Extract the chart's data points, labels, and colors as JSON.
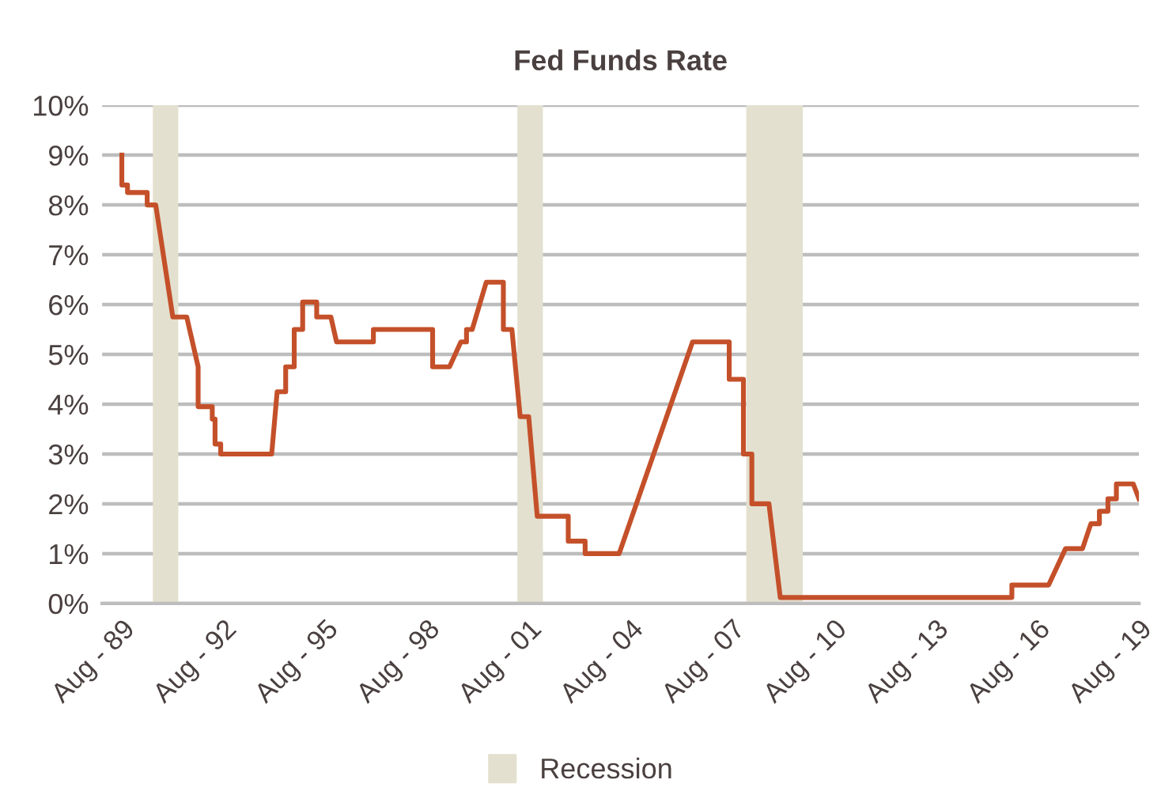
{
  "chart_data": {
    "type": "line",
    "title": "Fed Funds Rate",
    "x": [
      "1989-08",
      "1989-08",
      "1989-10",
      "1989-10",
      "1990-05",
      "1990-05",
      "1990-08",
      "1991-02",
      "1991-07",
      "1991-11",
      "1991-11",
      "1992-04",
      "1992-04",
      "1992-05",
      "1992-05",
      "1992-07",
      "1992-07",
      "1994-01",
      "1994-03",
      "1994-06",
      "1994-06",
      "1994-09",
      "1994-09",
      "1994-12",
      "1994-12",
      "1995-05",
      "1995-05",
      "1995-10",
      "1995-12",
      "1997-01",
      "1997-01",
      "1998-10",
      "1998-10",
      "1999-04",
      "1999-08",
      "1999-10",
      "1999-10",
      "1999-12",
      "2000-05",
      "2000-11",
      "2000-11",
      "2001-02",
      "2001-05",
      "2001-08",
      "2001-11",
      "2002-10",
      "2002-10",
      "2003-04",
      "2003-04",
      "2004-04",
      "2006-06",
      "2007-07",
      "2007-07",
      "2007-12",
      "2007-12",
      "2008-03",
      "2008-03",
      "2008-09",
      "2009-01",
      "2015-11",
      "2015-11",
      "2016-12",
      "2017-06",
      "2017-12",
      "2018-03",
      "2018-06",
      "2018-06",
      "2018-09",
      "2018-09",
      "2018-12",
      "2018-12",
      "2019-06",
      "2019-08"
    ],
    "series": [
      {
        "color": "#c4502a",
        "values": [
          9.0,
          8.4,
          8.4,
          8.25,
          8.25,
          8.0,
          8.0,
          5.75,
          5.75,
          4.75,
          3.95,
          3.95,
          3.7,
          3.7,
          3.2,
          3.2,
          3.0,
          3.0,
          4.25,
          4.25,
          4.75,
          4.75,
          5.5,
          5.5,
          6.05,
          6.05,
          5.75,
          5.75,
          5.25,
          5.25,
          5.5,
          5.5,
          4.75,
          4.75,
          5.25,
          5.25,
          5.5,
          5.5,
          6.45,
          6.45,
          5.5,
          5.5,
          3.75,
          3.75,
          1.75,
          1.75,
          1.25,
          1.25,
          1.0,
          1.0,
          5.25,
          5.25,
          4.5,
          4.5,
          3.0,
          3.0,
          2.0,
          2.0,
          0.12,
          0.12,
          0.37,
          0.37,
          1.1,
          1.1,
          1.6,
          1.6,
          1.85,
          1.85,
          2.1,
          2.1,
          2.4,
          2.4,
          2.1
        ]
      }
    ],
    "xlim": [
      "1989-01",
      "2019-08"
    ],
    "xticks": [
      {
        "value": "1989-08",
        "label": "Aug - 89"
      },
      {
        "value": "1992-08",
        "label": "Aug - 92"
      },
      {
        "value": "1995-08",
        "label": "Aug - 95"
      },
      {
        "value": "1998-08",
        "label": "Aug - 98"
      },
      {
        "value": "2001-08",
        "label": "Aug - 01"
      },
      {
        "value": "2004-08",
        "label": "Aug - 04"
      },
      {
        "value": "2007-08",
        "label": "Aug - 07"
      },
      {
        "value": "2010-08",
        "label": "Aug - 10"
      },
      {
        "value": "2013-08",
        "label": "Aug - 13"
      },
      {
        "value": "2016-08",
        "label": "Aug - 16"
      },
      {
        "value": "2019-08",
        "label": "Aug - 19"
      }
    ],
    "ylim": [
      0,
      10
    ],
    "yticks": [
      {
        "value": 0,
        "label": "0%"
      },
      {
        "value": 1,
        "label": "1%"
      },
      {
        "value": 2,
        "label": "2%"
      },
      {
        "value": 3,
        "label": "3%"
      },
      {
        "value": 4,
        "label": "4%"
      },
      {
        "value": 5,
        "label": "5%"
      },
      {
        "value": 6,
        "label": "6%"
      },
      {
        "value": 7,
        "label": "7%"
      },
      {
        "value": 8,
        "label": "8%"
      },
      {
        "value": 9,
        "label": "9%"
      },
      {
        "value": 10,
        "label": "10%"
      }
    ],
    "bands": [
      {
        "axis": "x",
        "from": "1990-07",
        "to": "1991-04",
        "label": "Recession",
        "color": "#e3e0cf"
      },
      {
        "axis": "x",
        "from": "2001-04",
        "to": "2002-01",
        "color": "#e3e0cf"
      },
      {
        "axis": "x",
        "from": "2008-01",
        "to": "2009-09",
        "color": "#e3e0cf"
      }
    ],
    "grid": "y",
    "legend": "bottom",
    "marker": "none",
    "line_style": "solid"
  }
}
